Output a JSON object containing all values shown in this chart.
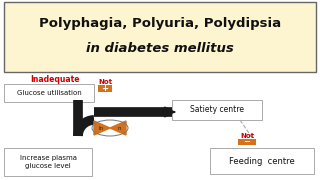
{
  "title_line1": "Polyphagia, Polyuria, Polydipsia",
  "title_line2": "in diabetes mellitus",
  "title_bg": "#fdf5d0",
  "title_border": "#666666",
  "bg_color": "#ffffff",
  "inadequate_label": "Inadequate",
  "inadequate_color": "#cc0000",
  "not1_label": "Not",
  "not1_color": "#cc0000",
  "not2_label": "Not",
  "not2_color": "#cc0000",
  "glucose_box_text": "Glucose utilisation",
  "satiety_box_text": "Satiety centre",
  "feeding_box_text": "Feeding  centre",
  "plasma_box_text": "Increase plasma\nglucose level",
  "orange_color": "#d4711e",
  "box_border": "#aaaaaa",
  "arrow_color": "#1a1a1a",
  "dashed_line_color": "#aaaaaa",
  "fig_w": 3.2,
  "fig_h": 1.8,
  "dpi": 100
}
